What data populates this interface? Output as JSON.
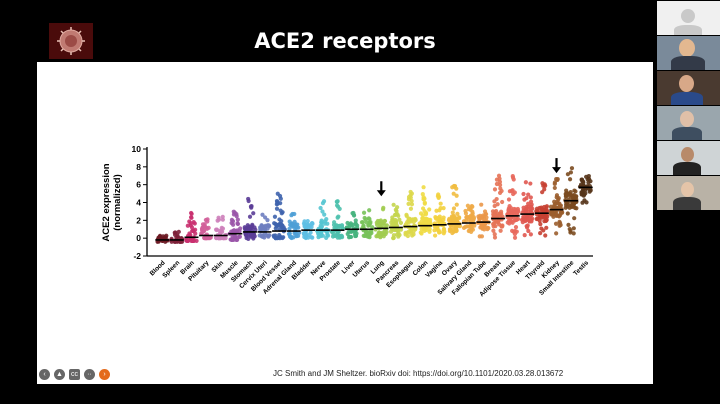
{
  "slide": {
    "title": "ACE2 receptors",
    "citation": "JC Smith and JM Sheltzer. bioRxiv doi: https://doi.org/10.1101/2020.03.28.013672",
    "controls": [
      "prev",
      "pointer",
      "subtitles",
      "menu",
      "next"
    ]
  },
  "chart_data": {
    "type": "scatter",
    "title": "",
    "ylabel": "ACE2 expression (normalized)",
    "ylim": [
      -2,
      10
    ],
    "yticks": [
      -2,
      0,
      2,
      4,
      6,
      8,
      10
    ],
    "categories": [
      "Blood",
      "Spleen",
      "Brain",
      "Pituitary",
      "Skin",
      "Muscle",
      "Stomach",
      "Cervix Uteri",
      "Blood Vessel",
      "Adrenal Gland",
      "Bladder",
      "Nerve",
      "Prostate",
      "Liver",
      "Uterus",
      "Lung",
      "Pancreas",
      "Esophagus",
      "Colon",
      "Vagina",
      "Ovary",
      "Salivary Gland",
      "Fallopian Tube",
      "Breast",
      "Adipose Tissue",
      "Heart",
      "Thyroid",
      "Kidney",
      "Small Intestine",
      "Testis"
    ],
    "colors": [
      "#6b1a24",
      "#7d2039",
      "#c9306f",
      "#d25f9a",
      "#cd7fba",
      "#9a55a8",
      "#5b3d97",
      "#6e7ec0",
      "#3e63ad",
      "#4e9fd6",
      "#5ebfe3",
      "#55c5d1",
      "#4fc1ae",
      "#47b47e",
      "#78c25a",
      "#a1cc50",
      "#c4d54e",
      "#ddd84a",
      "#efdb45",
      "#f3d23f",
      "#f1bd40",
      "#eeaa47",
      "#ea9749",
      "#e67356",
      "#e8685c",
      "#e05850",
      "#c74032",
      "#9b5e2d",
      "#7b4b20",
      "#55341a"
    ],
    "medians": [
      -0.2,
      -0.2,
      0.1,
      0.3,
      0.3,
      0.5,
      0.7,
      0.7,
      0.8,
      0.8,
      0.9,
      0.9,
      0.9,
      1.0,
      1.0,
      1.1,
      1.2,
      1.3,
      1.4,
      1.5,
      1.6,
      1.7,
      1.8,
      2.2,
      2.5,
      2.7,
      2.8,
      3.2,
      4.2,
      5.7
    ],
    "highs": [
      0.8,
      0.8,
      3.0,
      2.2,
      3.0,
      3.0,
      4.5,
      2.8,
      5.2,
      2.8,
      2.2,
      4.2,
      4.2,
      3.2,
      3.4,
      4.2,
      3.8,
      5.2,
      6.0,
      5.0,
      6.5,
      4.0,
      4.0,
      7.0,
      7.0,
      6.5,
      6.5,
      6.8,
      8.5,
      7.0
    ],
    "lows": [
      -0.4,
      -0.4,
      -0.3,
      0.0,
      0.0,
      -0.2,
      -0.2,
      0.0,
      0.0,
      0.0,
      0.0,
      0.0,
      0.0,
      0.0,
      0.0,
      0.0,
      0.0,
      0.0,
      0.0,
      0.0,
      0.0,
      0.0,
      0.0,
      0.0,
      0.0,
      0.0,
      0.0,
      0.5,
      0.5,
      3.3
    ],
    "annotations": [
      {
        "type": "arrow",
        "category": "Lung"
      },
      {
        "type": "arrow",
        "category": "Kidney"
      }
    ]
  },
  "participants": {
    "count": 6
  }
}
